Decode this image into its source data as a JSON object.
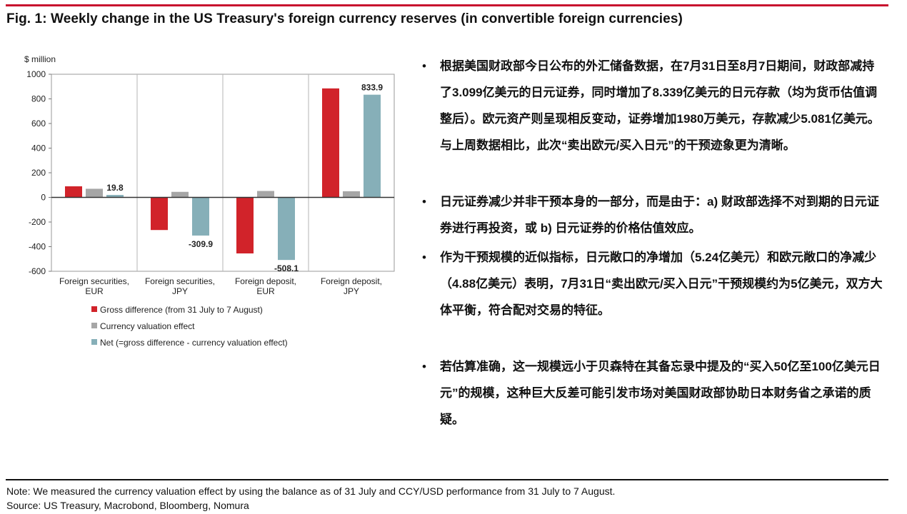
{
  "figure_title": "Fig. 1: Weekly change in the US Treasury's foreign currency reserves (in convertible foreign currencies)",
  "colors": {
    "accent_rule": "#c8102e",
    "gross": "#d1232a",
    "valuation": "#a6a6a6",
    "net": "#86afb8"
  },
  "chart_data": {
    "type": "bar",
    "ylabel": "$ million",
    "ylim": [
      -600,
      1000
    ],
    "yticks": [
      1000,
      800,
      600,
      400,
      200,
      0,
      -200,
      -400,
      -600
    ],
    "categories": [
      [
        "Foreign securities,",
        "EUR"
      ],
      [
        "Foreign securities,",
        "JPY"
      ],
      [
        "Foreign deposit,",
        "EUR"
      ],
      [
        "Foreign deposit,",
        "JPY"
      ]
    ],
    "series": [
      {
        "name": "Gross difference (from 31 July to 7 August)",
        "color": "#d1232a",
        "values": [
          90,
          -265,
          -455,
          885
        ]
      },
      {
        "name": "Currency valuation effect",
        "color": "#a6a6a6",
        "values": [
          70,
          45,
          52,
          50
        ]
      },
      {
        "name": "Net (=gross difference - currency valuation effect)",
        "color": "#86afb8",
        "values": [
          19.8,
          -309.9,
          -508.1,
          833.9
        ]
      }
    ],
    "data_labels": [
      "19.8",
      "-309.9",
      "-508.1",
      "833.9"
    ],
    "legend_position": "bottom",
    "grid": "vertical separators between category groups"
  },
  "bullets": [
    "根据美国财政部今日公布的外汇储备数据，在7月31日至8月7日期间，财政部减持了3.099亿美元的日元证券，同时增加了8.339亿美元的日元存款（均为货币估值调整后）。欧元资产则呈现相反变动，证券增加1980万美元，存款减少5.081亿美元。与上周数据相比，此次“卖出欧元/买入日元”的干预迹象更为清晰。",
    "日元证券减少并非干预本身的一部分，而是由于：a) 财政部选择不对到期的日元证券进行再投资，或 b) 日元证券的价格估值效应。",
    "作为干预规模的近似指标，日元敞口的净增加（5.24亿美元）和欧元敞口的净减少（4.88亿美元）表明，7月31日“卖出欧元/买入日元”干预规模约为5亿美元，双方大体平衡，符合配对交易的特征。",
    "若估算准确，这一规模远小于贝森特在其备忘录中提及的“买入50亿至100亿美元日元”的规模，这种巨大反差可能引发市场对美国财政部协助日本财务省之承诺的质疑。"
  ],
  "bullet_symbol": "•",
  "note": "Note: We measured the currency valuation effect by using the balance as of 31 July and CCY/USD performance from 31 July to 7 August.",
  "source": "Source: US Treasury, Macrobond, Bloomberg, Nomura"
}
